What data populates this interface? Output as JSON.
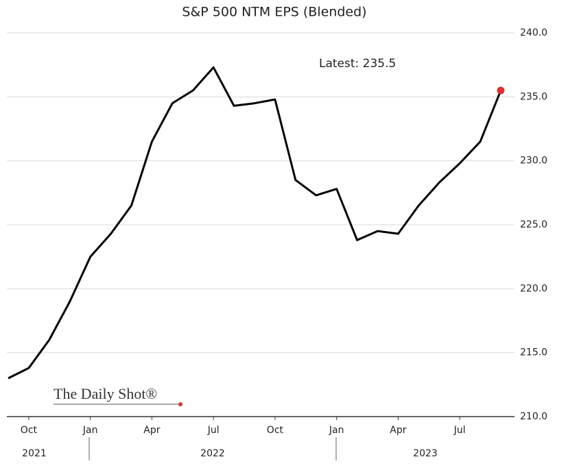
{
  "chart_data": {
    "type": "line",
    "title": "S&P 500 NTM EPS (Blended)",
    "annotation": "Latest:  235.5",
    "watermark": "The Daily Shot®",
    "x": [
      "2021-09",
      "2021-10",
      "2021-11",
      "2021-12",
      "2022-01",
      "2022-02",
      "2022-03",
      "2022-04",
      "2022-05",
      "2022-06",
      "2022-07",
      "2022-08",
      "2022-09",
      "2022-10",
      "2022-11",
      "2022-12",
      "2023-01",
      "2023-02",
      "2023-03",
      "2023-04",
      "2023-05",
      "2023-06",
      "2023-07",
      "2023-08",
      "2023-09"
    ],
    "series": [
      {
        "name": "S&P 500 NTM EPS",
        "color": "#000000",
        "values": [
          213.0,
          213.8,
          216.0,
          219.0,
          222.5,
          224.3,
          226.5,
          231.5,
          234.5,
          235.5,
          237.3,
          234.3,
          234.5,
          234.8,
          228.5,
          227.3,
          227.8,
          223.8,
          224.5,
          224.3,
          226.5,
          228.3,
          229.8,
          231.5,
          235.5
        ]
      }
    ],
    "latest_marker_color": "#e03030",
    "xlim": [
      "2021-09",
      "2023-09"
    ],
    "xticks": [
      {
        "value": "2021-10",
        "label": "Oct"
      },
      {
        "value": "2022-01",
        "label": "Jan"
      },
      {
        "value": "2022-04",
        "label": "Apr"
      },
      {
        "value": "2022-07",
        "label": "Jul"
      },
      {
        "value": "2022-10",
        "label": "Oct"
      },
      {
        "value": "2023-01",
        "label": "Jan"
      },
      {
        "value": "2023-04",
        "label": "Apr"
      },
      {
        "value": "2023-07",
        "label": "Jul"
      }
    ],
    "year_labels": [
      "2021",
      "2022",
      "2023"
    ],
    "ylim": [
      210,
      240
    ],
    "yticks": [
      {
        "value": 210,
        "label": "210.0"
      },
      {
        "value": 215,
        "label": "215.0"
      },
      {
        "value": 220,
        "label": "220.0"
      },
      {
        "value": 225,
        "label": "225.0"
      },
      {
        "value": 230,
        "label": "230.0"
      },
      {
        "value": 235,
        "label": "235.0"
      },
      {
        "value": 240,
        "label": "240.0"
      }
    ],
    "grid": true
  }
}
